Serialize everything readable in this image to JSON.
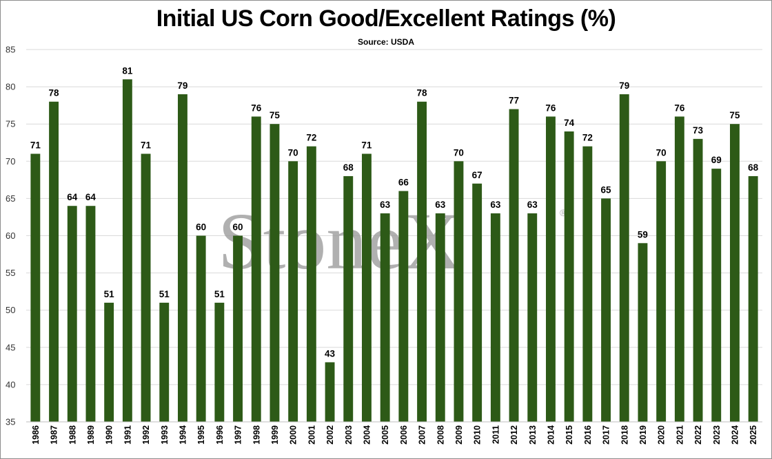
{
  "chart_data": {
    "type": "bar",
    "title": "Initial US Corn Good/Excellent Ratings (%)",
    "subtitle": "Source: USDA",
    "watermark": "StoneX",
    "watermark_mark": "®",
    "categories": [
      "1986",
      "1987",
      "1988",
      "1989",
      "1990",
      "1991",
      "1992",
      "1993",
      "1994",
      "1995",
      "1996",
      "1997",
      "1998",
      "1999",
      "2000",
      "2001",
      "2002",
      "2003",
      "2004",
      "2005",
      "2006",
      "2007",
      "2008",
      "2009",
      "2010",
      "2011",
      "2012",
      "2013",
      "2014",
      "2015",
      "2016",
      "2017",
      "2018",
      "2019",
      "2020",
      "2021",
      "2022",
      "2023",
      "2024",
      "2025"
    ],
    "values": [
      71,
      78,
      64,
      64,
      51,
      81,
      71,
      51,
      79,
      60,
      51,
      60,
      76,
      75,
      70,
      72,
      43,
      68,
      71,
      63,
      66,
      78,
      63,
      70,
      67,
      63,
      77,
      63,
      76,
      74,
      72,
      65,
      79,
      59,
      70,
      76,
      73,
      69,
      75,
      68
    ],
    "ylim": [
      35,
      85
    ],
    "yticks": [
      35,
      40,
      45,
      50,
      55,
      60,
      65,
      70,
      75,
      80,
      85
    ],
    "grid": true,
    "legend": "none",
    "bar_color": "#2d5a17",
    "grid_color": "#d9d9d9",
    "xlabel": "",
    "ylabel": ""
  }
}
